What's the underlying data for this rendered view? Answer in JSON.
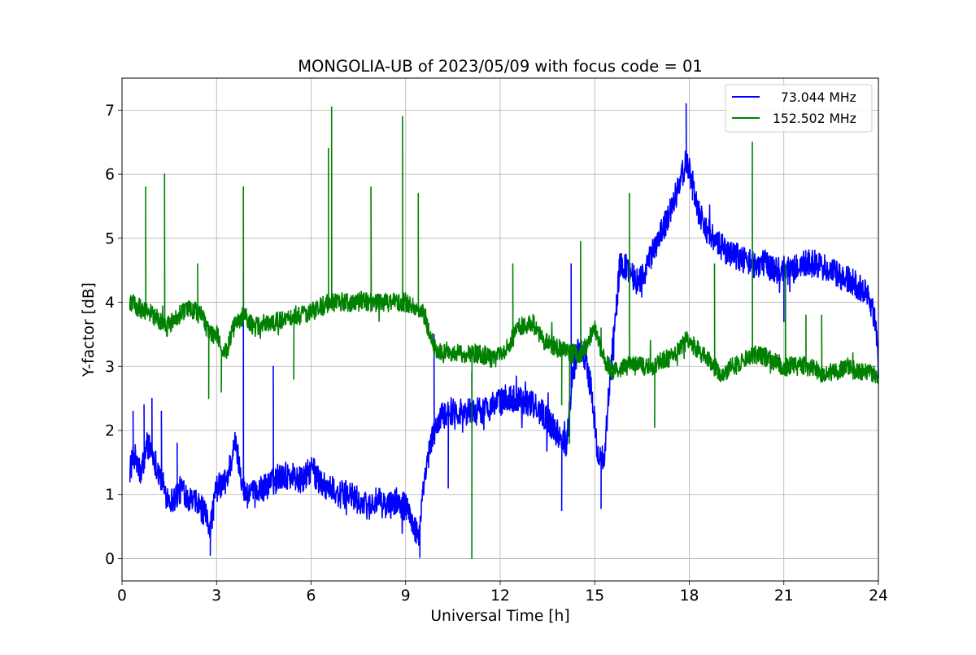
{
  "chart_data": {
    "type": "line",
    "title": "MONGOLIA-UB of 2023/05/09 with focus code = 01",
    "xlabel": "Universal Time [h]",
    "ylabel": "Y-factor [dB]",
    "xlim": [
      0,
      24
    ],
    "ylim": [
      -0.35,
      7.5
    ],
    "xticks": [
      0,
      3,
      6,
      9,
      12,
      15,
      18,
      21,
      24
    ],
    "yticks": [
      0,
      1,
      2,
      3,
      4,
      5,
      6,
      7
    ],
    "grid": true,
    "legend_position": "top-right",
    "series": [
      {
        "name": "  73.044 MHz",
        "color": "#0000ff",
        "noise": 0.22,
        "x": [
          0.25,
          0.4,
          0.6,
          0.8,
          1.0,
          1.2,
          1.4,
          1.6,
          1.9,
          2.2,
          2.5,
          2.8,
          3.0,
          3.3,
          3.6,
          3.9,
          4.2,
          4.5,
          4.8,
          5.1,
          5.4,
          5.7,
          6.0,
          6.3,
          6.6,
          6.9,
          7.2,
          7.5,
          7.8,
          8.1,
          8.4,
          8.7,
          9.0,
          9.2,
          9.4,
          9.6,
          9.8,
          10.0,
          10.3,
          10.6,
          11.0,
          11.4,
          11.8,
          12.2,
          12.6,
          13.0,
          13.3,
          13.6,
          13.9,
          14.1,
          14.3,
          14.5,
          14.7,
          14.9,
          15.1,
          15.3,
          15.5,
          15.8,
          16.1,
          16.4,
          16.7,
          17.0,
          17.3,
          17.6,
          17.9,
          18.1,
          18.3,
          18.6,
          18.9,
          19.2,
          19.6,
          20.0,
          20.4,
          20.8,
          21.0,
          21.3,
          21.6,
          22.0,
          22.4,
          22.8,
          23.2,
          23.5,
          23.7,
          23.9,
          24.0
        ],
        "y": [
          1.4,
          1.6,
          1.3,
          1.8,
          1.6,
          1.3,
          1.0,
          0.9,
          1.1,
          0.9,
          0.8,
          0.5,
          1.1,
          1.2,
          1.8,
          1.0,
          1.0,
          1.1,
          1.2,
          1.3,
          1.3,
          1.2,
          1.4,
          1.2,
          1.1,
          1.0,
          1.0,
          0.9,
          0.8,
          0.9,
          0.8,
          0.9,
          0.8,
          0.6,
          0.3,
          1.2,
          1.8,
          2.1,
          2.3,
          2.3,
          2.3,
          2.3,
          2.4,
          2.5,
          2.5,
          2.4,
          2.3,
          2.1,
          1.9,
          1.8,
          2.9,
          3.3,
          3.1,
          2.6,
          1.6,
          1.6,
          2.9,
          4.6,
          4.5,
          4.3,
          4.6,
          5.0,
          5.3,
          5.7,
          6.2,
          5.9,
          5.4,
          5.1,
          4.9,
          4.8,
          4.7,
          4.6,
          4.6,
          4.5,
          4.5,
          4.5,
          4.6,
          4.6,
          4.5,
          4.4,
          4.3,
          4.2,
          4.1,
          3.7,
          3.0
        ],
        "spikes": [
          [
            0.35,
            2.3
          ],
          [
            0.7,
            2.4
          ],
          [
            0.95,
            2.5
          ],
          [
            1.25,
            2.3
          ],
          [
            1.75,
            1.8
          ],
          [
            2.8,
            0.05
          ],
          [
            3.85,
            4.5
          ],
          [
            4.8,
            3.0
          ],
          [
            9.45,
            0.02
          ],
          [
            9.9,
            3.5
          ],
          [
            10.35,
            1.1
          ],
          [
            11.1,
            2.9
          ],
          [
            13.95,
            0.75
          ],
          [
            14.25,
            4.6
          ],
          [
            15.2,
            0.78
          ],
          [
            15.6,
            3.1
          ],
          [
            17.9,
            7.1
          ],
          [
            18.1,
            5.6
          ],
          [
            21.0,
            3.7
          ]
        ]
      },
      {
        "name": "152.502 MHz",
        "color": "#008000",
        "noise": 0.15,
        "x": [
          0.25,
          0.6,
          1.0,
          1.4,
          1.8,
          2.2,
          2.5,
          2.8,
          3.0,
          3.3,
          3.6,
          3.9,
          4.2,
          4.6,
          5.0,
          5.4,
          5.8,
          6.2,
          6.6,
          7.0,
          7.4,
          7.8,
          8.2,
          8.6,
          9.0,
          9.3,
          9.6,
          9.9,
          10.2,
          10.6,
          11.0,
          11.4,
          11.8,
          12.2,
          12.6,
          13.0,
          13.4,
          13.8,
          14.2,
          14.6,
          15.0,
          15.3,
          15.6,
          16.0,
          16.4,
          16.8,
          17.2,
          17.6,
          17.9,
          18.2,
          18.6,
          19.0,
          19.4,
          19.8,
          20.2,
          20.6,
          21.0,
          21.4,
          21.8,
          22.2,
          22.6,
          23.0,
          23.4,
          23.8,
          24.0
        ],
        "y": [
          4.0,
          3.9,
          3.8,
          3.6,
          3.8,
          3.9,
          3.8,
          3.5,
          3.5,
          3.2,
          3.7,
          3.8,
          3.6,
          3.7,
          3.7,
          3.8,
          3.8,
          3.9,
          4.0,
          4.0,
          4.0,
          4.0,
          4.0,
          4.0,
          4.0,
          3.9,
          3.8,
          3.3,
          3.2,
          3.2,
          3.2,
          3.2,
          3.1,
          3.3,
          3.6,
          3.7,
          3.4,
          3.3,
          3.2,
          3.2,
          3.6,
          3.1,
          2.9,
          3.0,
          3.0,
          3.0,
          3.1,
          3.2,
          3.4,
          3.3,
          3.1,
          2.9,
          3.0,
          3.1,
          3.2,
          3.1,
          3.0,
          3.0,
          3.0,
          2.9,
          2.9,
          3.0,
          2.9,
          2.9,
          2.8
        ],
        "spikes": [
          [
            0.75,
            5.8
          ],
          [
            1.35,
            6.0
          ],
          [
            2.4,
            4.6
          ],
          [
            2.75,
            2.5
          ],
          [
            3.15,
            2.6
          ],
          [
            3.85,
            5.8
          ],
          [
            5.45,
            2.8
          ],
          [
            6.55,
            6.4
          ],
          [
            6.65,
            7.05
          ],
          [
            7.9,
            5.8
          ],
          [
            8.9,
            6.9
          ],
          [
            9.4,
            5.7
          ],
          [
            11.1,
            0.0
          ],
          [
            12.4,
            4.6
          ],
          [
            13.95,
            2.4
          ],
          [
            14.2,
            1.8
          ],
          [
            14.55,
            4.95
          ],
          [
            15.2,
            3.6
          ],
          [
            16.1,
            5.7
          ],
          [
            16.9,
            2.05
          ],
          [
            18.8,
            4.6
          ],
          [
            20.0,
            6.5
          ],
          [
            21.05,
            4.6
          ],
          [
            21.7,
            3.8
          ],
          [
            22.2,
            3.8
          ]
        ]
      }
    ]
  }
}
